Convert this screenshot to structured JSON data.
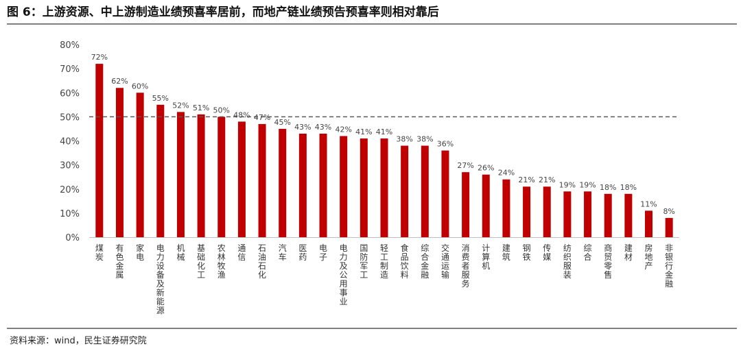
{
  "title": "图 6：上游资源、中上游制造业绩预喜率居前，而地产链业绩预告预喜率则相对靠后",
  "source": "资料来源：wind，民生证券研究院",
  "colors": {
    "bar": "#c00000",
    "reference_line": "#595959"
  },
  "chart_data": {
    "type": "bar",
    "title": "",
    "xlabel": "",
    "ylabel": "",
    "ylim": [
      0,
      80
    ],
    "yticks": [
      "0%",
      "10%",
      "20%",
      "30%",
      "40%",
      "50%",
      "60%",
      "70%",
      "80%"
    ],
    "grid": false,
    "legend": "none",
    "reference_line": 50,
    "categories": [
      "煤炭",
      "有色金属",
      "家电",
      "电力设备及新能源",
      "机械",
      "基础化工",
      "农林牧渔",
      "通信",
      "石油石化",
      "汽车",
      "医药",
      "电子",
      "电力及公用事业",
      "国防军工",
      "轻工制造",
      "食品饮料",
      "综合金融",
      "交通运输",
      "消费者服务",
      "计算机",
      "建筑",
      "钢铁",
      "传媒",
      "纺织服装",
      "综合",
      "商贸零售",
      "建材",
      "房地产",
      "非银行金融"
    ],
    "values": [
      72,
      62,
      60,
      55,
      52,
      51,
      50,
      48,
      47,
      45,
      43,
      43,
      42,
      41,
      41,
      38,
      38,
      36,
      27,
      26,
      24,
      21,
      21,
      19,
      19,
      18,
      18,
      11,
      8
    ],
    "data_labels": [
      "72%",
      "62%",
      "60%",
      "55%",
      "52%",
      "51%",
      "50%",
      "48%",
      "47%",
      "45%",
      "43%",
      "43%",
      "42%",
      "41%",
      "41%",
      "38%",
      "38%",
      "36%",
      "27%",
      "26%",
      "24%",
      "21%",
      "21%",
      "19%",
      "19%",
      "18%",
      "18%",
      "11%",
      "8%"
    ]
  }
}
